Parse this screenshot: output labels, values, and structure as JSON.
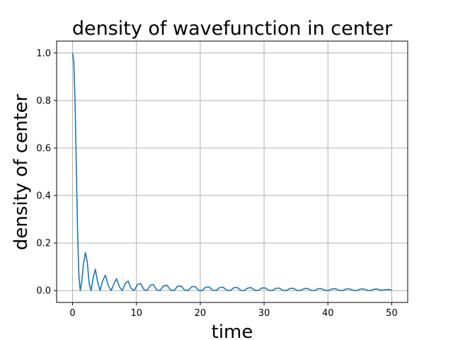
{
  "chart_data": {
    "type": "line",
    "title": "density of wavefunction in center",
    "xlabel": "time",
    "ylabel": "density of center",
    "xlim": [
      -2.5,
      52.5
    ],
    "ylim": [
      -0.05,
      1.05
    ],
    "x_ticks": [
      0,
      10,
      20,
      30,
      40,
      50
    ],
    "x_tick_labels": [
      "0",
      "10",
      "20",
      "30",
      "40",
      "50"
    ],
    "y_ticks": [
      0.0,
      0.2,
      0.4,
      0.6,
      0.8,
      1.0
    ],
    "y_tick_labels": [
      "0.0",
      "0.2",
      "0.4",
      "0.6",
      "0.8",
      "1.0"
    ],
    "grid": true,
    "line_color": "#1f77b4",
    "series": [
      {
        "x": [
          0,
          0.2,
          0.4,
          0.6,
          0.8,
          1.0,
          1.2,
          1.4,
          1.7,
          2.0,
          2.3,
          2.6,
          2.9,
          3.2,
          3.55,
          3.9,
          4.3,
          4.7,
          5.15,
          5.6,
          6.05,
          6.5,
          6.9,
          7.35,
          7.8,
          8.25,
          8.7,
          9.15,
          9.65,
          10.15,
          10.65,
          11.15,
          11.65,
          12.15,
          12.65,
          13.15,
          13.7,
          14.25,
          14.8,
          15.35,
          15.9,
          16.45,
          17.0,
          17.55,
          18.1,
          18.65,
          19.2,
          19.75,
          20.3,
          20.85,
          21.4,
          21.95,
          22.5,
          23.05,
          23.6,
          24.15,
          24.7,
          25.25,
          25.8,
          26.35,
          26.9,
          27.45,
          28.0,
          28.55,
          29.1,
          29.65,
          30.2,
          30.75,
          31.3,
          31.85,
          32.4,
          32.95,
          33.5,
          34.05,
          34.6,
          35.15,
          35.7,
          36.25,
          36.8,
          37.35,
          37.9,
          38.45,
          39.0,
          39.55,
          40.1,
          40.65,
          41.2,
          41.75,
          42.3,
          42.85,
          43.4,
          43.95,
          44.5,
          45.05,
          45.6,
          46.15,
          46.7,
          47.25,
          47.8,
          48.35,
          48.9,
          49.45,
          50.0
        ],
        "values": [
          1.0,
          0.96,
          0.78,
          0.5,
          0.23,
          0.06,
          0.0,
          0.03,
          0.11,
          0.16,
          0.12,
          0.03,
          0.0,
          0.05,
          0.09,
          0.04,
          0.0,
          0.04,
          0.065,
          0.02,
          0.0,
          0.03,
          0.05,
          0.015,
          0.0,
          0.03,
          0.04,
          0.01,
          0.0,
          0.025,
          0.03,
          0.005,
          0.0,
          0.022,
          0.026,
          0.003,
          0.0,
          0.02,
          0.022,
          0.002,
          0.0,
          0.018,
          0.019,
          0.002,
          0.0,
          0.016,
          0.017,
          0.001,
          0.0,
          0.014,
          0.015,
          0.001,
          0.0,
          0.013,
          0.014,
          0.001,
          0.0,
          0.012,
          0.013,
          0.001,
          0.0,
          0.011,
          0.012,
          0.001,
          0.0,
          0.011,
          0.011,
          0.001,
          0.0,
          0.01,
          0.01,
          0.001,
          0.0,
          0.009,
          0.009,
          0.001,
          0.0,
          0.008,
          0.009,
          0.001,
          0.0,
          0.008,
          0.008,
          0.001,
          0.0,
          0.007,
          0.008,
          0.001,
          0.0,
          0.007,
          0.007,
          0.001,
          0.0,
          0.006,
          0.007,
          0.001,
          0.0,
          0.006,
          0.006,
          0.001,
          0.003,
          0.005,
          0.002
        ]
      }
    ]
  }
}
